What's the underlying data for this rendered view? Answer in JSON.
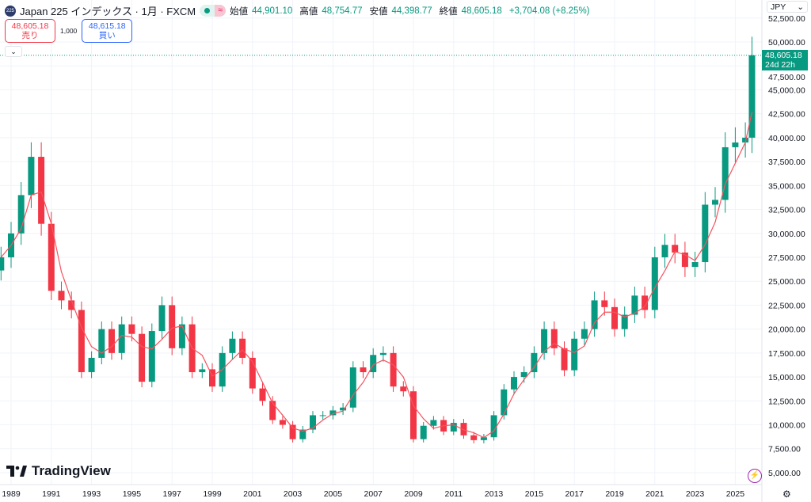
{
  "header": {
    "symbol_badge": "225",
    "title": "Japan 225 インデックス · 1月 · FXCM",
    "approx_icon": "≈",
    "open_label": "始値",
    "open": "44,901.10",
    "high_label": "高値",
    "high": "48,754.77",
    "low_label": "安値",
    "low": "44,398.77",
    "close_label": "終値",
    "close": "48,605.18",
    "change": "+3,704.08 (+8.25%)"
  },
  "trade": {
    "sell_price": "48,605.18",
    "sell_label": "売り",
    "quantity": "1,000",
    "buy_price": "48,615.18",
    "buy_label": "買い",
    "collapse_icon": "⌄"
  },
  "currency": "JPY",
  "price_label": {
    "price": "48,605.18",
    "countdown": "24d 22h"
  },
  "brand": "TradingView",
  "colors": {
    "up": "#089981",
    "down": "#f23645",
    "ma": "#f7525f",
    "grid": "#f0f3fa"
  },
  "chart_data": {
    "type": "candlestick",
    "title": "Japan 225 インデックス · 1月 · FXCM",
    "x_ticks": [
      "1989",
      "1991",
      "1993",
      "1995",
      "1997",
      "1999",
      "2001",
      "2003",
      "2005",
      "2007",
      "2009",
      "2011",
      "2013",
      "2015",
      "2017",
      "2019",
      "2021",
      "2023",
      "2025"
    ],
    "y_ticks": [
      "5,000.00",
      "7,500.00",
      "10,000.00",
      "12,500.00",
      "15,000.00",
      "17,500.00",
      "20,000.00",
      "22,500.00",
      "25,000.00",
      "27,500.00",
      "30,000.00",
      "32,500.00",
      "35,000.00",
      "37,500.00",
      "40,000.00",
      "42,500.00",
      "45,000.00",
      "47,500.00",
      "50,000.00",
      "52,500.00"
    ],
    "ylim": [
      5000,
      52500
    ],
    "xlim": [
      1988.45,
      2026.3
    ],
    "x": [
      1988.5,
      1989,
      1989.5,
      1990,
      1990.5,
      1991,
      1991.5,
      1992,
      1992.5,
      1993,
      1993.5,
      1994,
      1994.5,
      1995,
      1995.5,
      1996,
      1996.5,
      1997,
      1997.5,
      1998,
      1998.5,
      1999,
      1999.5,
      2000,
      2000.5,
      2001,
      2001.5,
      2002,
      2002.5,
      2003,
      2003.5,
      2004,
      2004.5,
      2005,
      2005.5,
      2006,
      2006.5,
      2007,
      2007.5,
      2008,
      2008.5,
      2009,
      2009.5,
      2010,
      2010.5,
      2011,
      2011.5,
      2012,
      2012.5,
      2013,
      2013.5,
      2014,
      2014.5,
      2015,
      2015.5,
      2016,
      2016.5,
      2017,
      2017.5,
      2018,
      2018.5,
      2019,
      2019.5,
      2020,
      2020.5,
      2021,
      2021.5,
      2022,
      2022.5,
      2023,
      2023.5,
      2024,
      2024.5,
      2025,
      2025.5,
      2025.83
    ],
    "close": [
      27500,
      30000,
      34000,
      38000,
      31000,
      24000,
      23000,
      22000,
      15500,
      17000,
      20000,
      17500,
      20500,
      19500,
      14500,
      19800,
      22500,
      18000,
      20500,
      15500,
      15800,
      14000,
      17500,
      19000,
      17000,
      13800,
      12500,
      10500,
      10000,
      8500,
      9500,
      11000,
      11000,
      11500,
      11800,
      16000,
      15500,
      17300,
      17500,
      14000,
      13500,
      8500,
      9900,
      10500,
      9300,
      10200,
      8900,
      8400,
      8700,
      11000,
      13700,
      15000,
      15500,
      17500,
      20000,
      18000,
      15700,
      19000,
      20000,
      23000,
      22300,
      20000,
      21500,
      23500,
      22000,
      27500,
      28800,
      28000,
      26500,
      27000,
      33000,
      33500,
      39000,
      39500,
      40000,
      48605.18
    ],
    "ma_period": 3,
    "last_price": 48605.18
  }
}
